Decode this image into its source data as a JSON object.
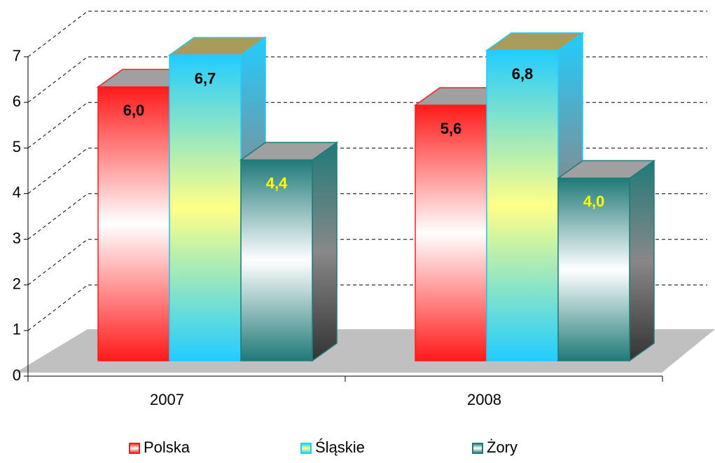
{
  "chart_data": {
    "type": "bar3d",
    "categories": [
      "2007",
      "2008"
    ],
    "series": [
      {
        "name": "Polska",
        "color": "#ff1a1a",
        "mid_color": "#ffffff",
        "label_color": "#000000",
        "values": [
          6.0,
          5.6
        ],
        "value_labels": [
          "6,0",
          "5,6"
        ]
      },
      {
        "name": "Śląskie",
        "color": "#22ccff",
        "mid_color": "#ffff88",
        "label_color": "#000000",
        "values": [
          6.7,
          6.8
        ],
        "value_labels": [
          "6,7",
          "6,8"
        ]
      },
      {
        "name": "Żory",
        "color": "#1f7a78",
        "mid_color": "#ffffff",
        "label_color": "#ffff00",
        "values": [
          4.4,
          4.0
        ],
        "value_labels": [
          "4,4",
          "4,0"
        ]
      }
    ],
    "ylim": [
      0,
      7
    ],
    "yticks": [
      0,
      1,
      2,
      3,
      4,
      5,
      6,
      7
    ],
    "grid": true,
    "legend": "bottom"
  }
}
